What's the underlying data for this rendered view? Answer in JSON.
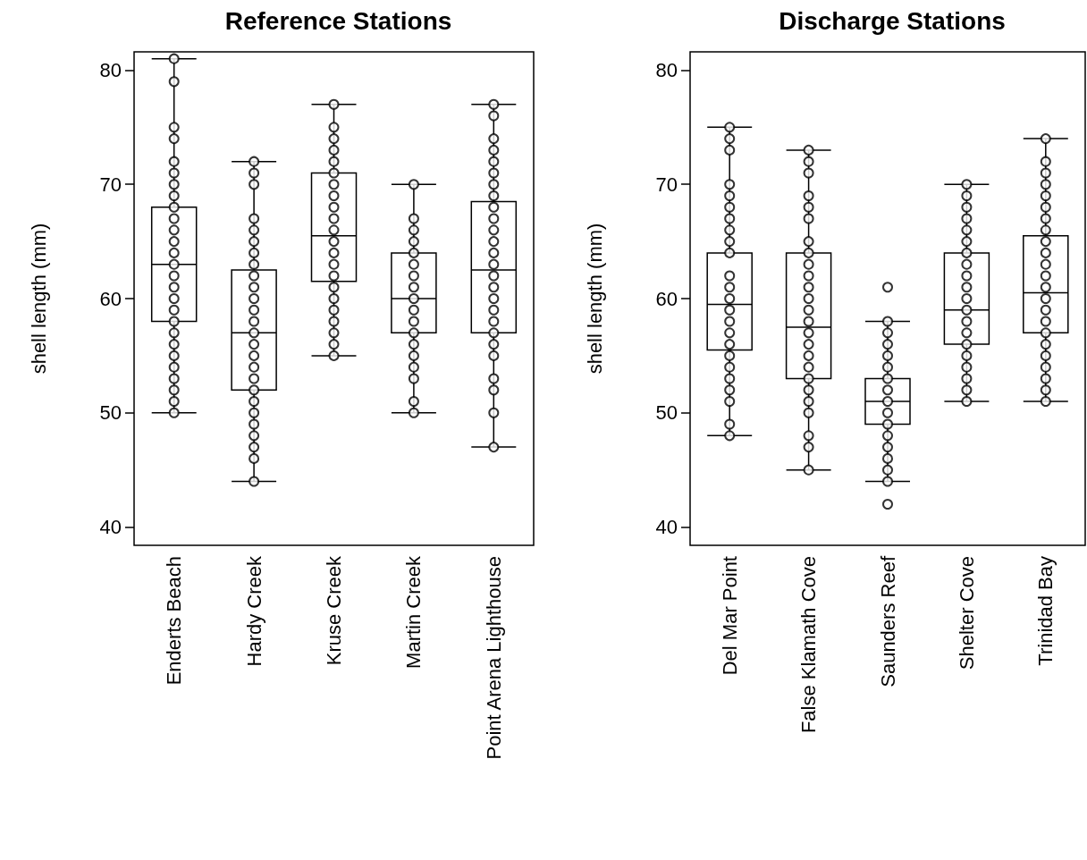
{
  "chart_data": [
    {
      "type": "box",
      "title": "Reference Stations",
      "ylabel": "shell length (mm)",
      "categories": [
        "Enderts Beach",
        "Hardy Creek",
        "Kruse Creek",
        "Martin Creek",
        "Point Arena Lighthouse"
      ],
      "boxes": [
        {
          "low": 50,
          "q1": 58,
          "median": 63,
          "q3": 68,
          "high": 81
        },
        {
          "low": 44,
          "q1": 52,
          "median": 57,
          "q3": 62.5,
          "high": 72
        },
        {
          "low": 55,
          "q1": 61.5,
          "median": 65.5,
          "q3": 71,
          "high": 77
        },
        {
          "low": 50,
          "q1": 57,
          "median": 60,
          "q3": 64,
          "high": 70
        },
        {
          "low": 47,
          "q1": 57,
          "median": 62.5,
          "q3": 68.5,
          "high": 77
        }
      ],
      "ylim": [
        38.4,
        81.6
      ],
      "yticks": [
        40,
        50,
        60,
        70,
        80
      ],
      "marker": "circle",
      "grid": false,
      "series": [
        {
          "type": "scatter",
          "color": "#000000",
          "x": [
            "Enderts Beach",
            "Enderts Beach",
            "Enderts Beach",
            "Enderts Beach",
            "Enderts Beach",
            "Enderts Beach",
            "Enderts Beach",
            "Enderts Beach",
            "Enderts Beach",
            "Enderts Beach",
            "Enderts Beach",
            "Enderts Beach",
            "Enderts Beach",
            "Enderts Beach",
            "Enderts Beach",
            "Enderts Beach",
            "Enderts Beach",
            "Enderts Beach",
            "Enderts Beach",
            "Enderts Beach",
            "Enderts Beach",
            "Enderts Beach",
            "Enderts Beach",
            "Enderts Beach",
            "Enderts Beach",
            "Enderts Beach",
            "Enderts Beach",
            "Hardy Creek",
            "Hardy Creek",
            "Hardy Creek",
            "Hardy Creek",
            "Hardy Creek",
            "Hardy Creek",
            "Hardy Creek",
            "Hardy Creek",
            "Hardy Creek",
            "Hardy Creek",
            "Hardy Creek",
            "Hardy Creek",
            "Hardy Creek",
            "Hardy Creek",
            "Hardy Creek",
            "Hardy Creek",
            "Hardy Creek",
            "Hardy Creek",
            "Hardy Creek",
            "Hardy Creek",
            "Hardy Creek",
            "Hardy Creek",
            "Hardy Creek",
            "Hardy Creek",
            "Hardy Creek",
            "Hardy Creek",
            "Kruse Creek",
            "Kruse Creek",
            "Kruse Creek",
            "Kruse Creek",
            "Kruse Creek",
            "Kruse Creek",
            "Kruse Creek",
            "Kruse Creek",
            "Kruse Creek",
            "Kruse Creek",
            "Kruse Creek",
            "Kruse Creek",
            "Kruse Creek",
            "Kruse Creek",
            "Kruse Creek",
            "Kruse Creek",
            "Kruse Creek",
            "Kruse Creek",
            "Kruse Creek",
            "Kruse Creek",
            "Kruse Creek",
            "Kruse Creek",
            "Martin Creek",
            "Martin Creek",
            "Martin Creek",
            "Martin Creek",
            "Martin Creek",
            "Martin Creek",
            "Martin Creek",
            "Martin Creek",
            "Martin Creek",
            "Martin Creek",
            "Martin Creek",
            "Martin Creek",
            "Martin Creek",
            "Martin Creek",
            "Martin Creek",
            "Martin Creek",
            "Martin Creek",
            "Martin Creek",
            "Point Arena Lighthouse",
            "Point Arena Lighthouse",
            "Point Arena Lighthouse",
            "Point Arena Lighthouse",
            "Point Arena Lighthouse",
            "Point Arena Lighthouse",
            "Point Arena Lighthouse",
            "Point Arena Lighthouse",
            "Point Arena Lighthouse",
            "Point Arena Lighthouse",
            "Point Arena Lighthouse",
            "Point Arena Lighthouse",
            "Point Arena Lighthouse",
            "Point Arena Lighthouse",
            "Point Arena Lighthouse",
            "Point Arena Lighthouse",
            "Point Arena Lighthouse",
            "Point Arena Lighthouse",
            "Point Arena Lighthouse",
            "Point Arena Lighthouse",
            "Point Arena Lighthouse",
            "Point Arena Lighthouse",
            "Point Arena Lighthouse",
            "Point Arena Lighthouse",
            "Point Arena Lighthouse",
            "Point Arena Lighthouse"
          ],
          "values": [
            81,
            79,
            75,
            74,
            72,
            71,
            70,
            69,
            68,
            67,
            66,
            65,
            64,
            63,
            62,
            61,
            60,
            59,
            58,
            57,
            56,
            55,
            54,
            53,
            52,
            51,
            50,
            72,
            71,
            70,
            67,
            66,
            65,
            64,
            63,
            62,
            61,
            60,
            59,
            58,
            57,
            56,
            55,
            54,
            53,
            52,
            51,
            50,
            49,
            48,
            47,
            46,
            44,
            77,
            75,
            74,
            73,
            72,
            71,
            70,
            69,
            68,
            67,
            66,
            65,
            64,
            63,
            62,
            61,
            60,
            59,
            58,
            57,
            56,
            55,
            70,
            67,
            66,
            65,
            64,
            63,
            62,
            61,
            60,
            59,
            58,
            57,
            56,
            55,
            54,
            53,
            51,
            50,
            77,
            76,
            74,
            73,
            72,
            71,
            70,
            69,
            68,
            67,
            66,
            65,
            64,
            63,
            62,
            61,
            60,
            59,
            58,
            57,
            56,
            55,
            53,
            52,
            50,
            47
          ]
        }
      ]
    },
    {
      "type": "box",
      "title": "Discharge Stations",
      "ylabel": "shell length (mm)",
      "categories": [
        "Del Mar Point",
        "False Klamath Cove",
        "Saunders Reef",
        "Shelter Cove",
        "Trinidad Bay"
      ],
      "boxes": [
        {
          "low": 48,
          "q1": 55.5,
          "median": 59.5,
          "q3": 64,
          "high": 75
        },
        {
          "low": 45,
          "q1": 53,
          "median": 57.5,
          "q3": 64,
          "high": 73
        },
        {
          "low": 44,
          "q1": 49,
          "median": 51,
          "q3": 53,
          "high": 58,
          "outliers": [
            61,
            42
          ]
        },
        {
          "low": 51,
          "q1": 56,
          "median": 59,
          "q3": 64,
          "high": 70
        },
        {
          "low": 51,
          "q1": 57,
          "median": 60.5,
          "q3": 65.5,
          "high": 74
        }
      ],
      "ylim": [
        38.4,
        81.6
      ],
      "yticks": [
        40,
        50,
        60,
        70,
        80
      ],
      "marker": "circle",
      "grid": false,
      "series": [
        {
          "type": "scatter",
          "color": "#000000",
          "x": [
            "Del Mar Point",
            "Del Mar Point",
            "Del Mar Point",
            "Del Mar Point",
            "Del Mar Point",
            "Del Mar Point",
            "Del Mar Point",
            "Del Mar Point",
            "Del Mar Point",
            "Del Mar Point",
            "Del Mar Point",
            "Del Mar Point",
            "Del Mar Point",
            "Del Mar Point",
            "Del Mar Point",
            "Del Mar Point",
            "Del Mar Point",
            "Del Mar Point",
            "Del Mar Point",
            "Del Mar Point",
            "Del Mar Point",
            "Del Mar Point",
            "Del Mar Point",
            "Del Mar Point",
            "False Klamath Cove",
            "False Klamath Cove",
            "False Klamath Cove",
            "False Klamath Cove",
            "False Klamath Cove",
            "False Klamath Cove",
            "False Klamath Cove",
            "False Klamath Cove",
            "False Klamath Cove",
            "False Klamath Cove",
            "False Klamath Cove",
            "False Klamath Cove",
            "False Klamath Cove",
            "False Klamath Cove",
            "False Klamath Cove",
            "False Klamath Cove",
            "False Klamath Cove",
            "False Klamath Cove",
            "False Klamath Cove",
            "False Klamath Cove",
            "False Klamath Cove",
            "False Klamath Cove",
            "False Klamath Cove",
            "False Klamath Cove",
            "False Klamath Cove",
            "Saunders Reef",
            "Saunders Reef",
            "Saunders Reef",
            "Saunders Reef",
            "Saunders Reef",
            "Saunders Reef",
            "Saunders Reef",
            "Saunders Reef",
            "Saunders Reef",
            "Saunders Reef",
            "Saunders Reef",
            "Saunders Reef",
            "Saunders Reef",
            "Saunders Reef",
            "Saunders Reef",
            "Shelter Cove",
            "Shelter Cove",
            "Shelter Cove",
            "Shelter Cove",
            "Shelter Cove",
            "Shelter Cove",
            "Shelter Cove",
            "Shelter Cove",
            "Shelter Cove",
            "Shelter Cove",
            "Shelter Cove",
            "Shelter Cove",
            "Shelter Cove",
            "Shelter Cove",
            "Shelter Cove",
            "Shelter Cove",
            "Shelter Cove",
            "Shelter Cove",
            "Shelter Cove",
            "Shelter Cove",
            "Trinidad Bay",
            "Trinidad Bay",
            "Trinidad Bay",
            "Trinidad Bay",
            "Trinidad Bay",
            "Trinidad Bay",
            "Trinidad Bay",
            "Trinidad Bay",
            "Trinidad Bay",
            "Trinidad Bay",
            "Trinidad Bay",
            "Trinidad Bay",
            "Trinidad Bay",
            "Trinidad Bay",
            "Trinidad Bay",
            "Trinidad Bay",
            "Trinidad Bay",
            "Trinidad Bay",
            "Trinidad Bay",
            "Trinidad Bay",
            "Trinidad Bay",
            "Trinidad Bay",
            "Trinidad Bay"
          ],
          "values": [
            75,
            74,
            73,
            70,
            69,
            68,
            67,
            66,
            65,
            64,
            62,
            61,
            60,
            59,
            58,
            57,
            56,
            55,
            54,
            53,
            52,
            51,
            49,
            48,
            73,
            72,
            71,
            69,
            68,
            67,
            65,
            64,
            63,
            62,
            61,
            60,
            59,
            58,
            57,
            56,
            55,
            54,
            53,
            52,
            51,
            50,
            48,
            47,
            45,
            58,
            57,
            56,
            55,
            54,
            53,
            52,
            51,
            50,
            49,
            48,
            47,
            46,
            45,
            44,
            70,
            69,
            68,
            67,
            66,
            65,
            64,
            63,
            62,
            61,
            60,
            59,
            58,
            57,
            56,
            55,
            54,
            53,
            52,
            51,
            74,
            72,
            71,
            70,
            69,
            68,
            67,
            66,
            65,
            64,
            63,
            62,
            61,
            60,
            59,
            58,
            57,
            56,
            55,
            54,
            53,
            52,
            51
          ]
        }
      ]
    }
  ]
}
